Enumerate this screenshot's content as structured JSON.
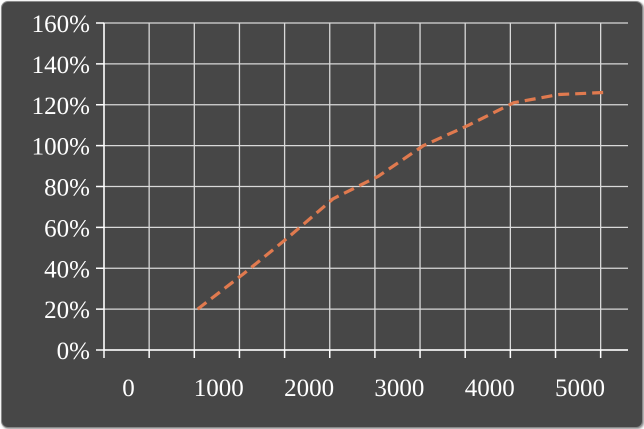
{
  "chart_data": {
    "type": "line",
    "title": "",
    "xlabel": "",
    "ylabel": "",
    "xlim": [
      0,
      5000
    ],
    "ylim": [
      0,
      1.6
    ],
    "x_ticks": [
      0,
      1000,
      2000,
      3000,
      4000,
      5000
    ],
    "x_tick_labels": [
      "0",
      "1000",
      "2000",
      "3000",
      "4000",
      "5000"
    ],
    "y_ticks": [
      0,
      0.2,
      0.4,
      0.6,
      0.8,
      1.0,
      1.2,
      1.4,
      1.6
    ],
    "y_tick_labels": [
      "0%",
      "20%",
      "40%",
      "60%",
      "80%",
      "100%",
      "120%",
      "140%",
      "160%"
    ],
    "grid": true,
    "legend": "none",
    "series": [
      {
        "line_style": "dashed",
        "color": "#e07a4f",
        "x": [
          500,
          1000,
          1500,
          2000,
          2500,
          3000,
          3500,
          4000,
          4500,
          5000
        ],
        "y": [
          0.2,
          0.37,
          0.55,
          0.74,
          0.85,
          1.0,
          1.1,
          1.21,
          1.25,
          1.26
        ]
      }
    ]
  }
}
